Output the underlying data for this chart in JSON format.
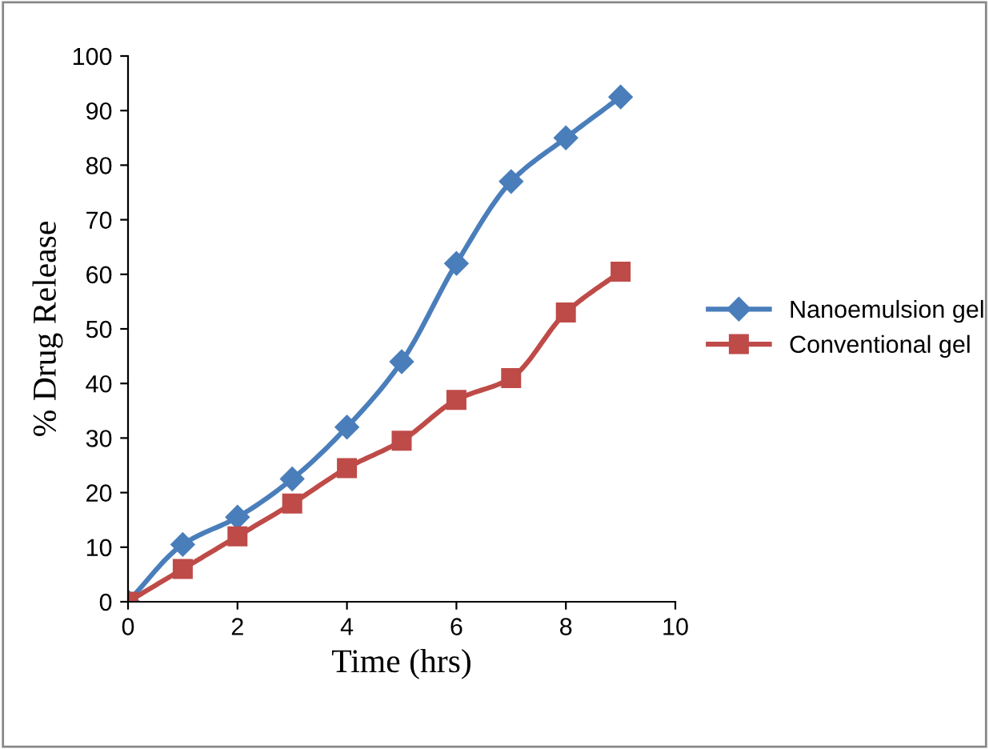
{
  "chart_data": {
    "type": "line",
    "xlabel": "Time (hrs)",
    "ylabel": "% Drug Release",
    "x": [
      0,
      1,
      2,
      3,
      4,
      5,
      6,
      7,
      8,
      9
    ],
    "series": [
      {
        "name": "Nanoemulsion gel",
        "color": "#4a7ebb",
        "marker": "diamond",
        "values": [
          0,
          10.5,
          15.5,
          22.5,
          32,
          44,
          62,
          77,
          85,
          92.5
        ]
      },
      {
        "name": "Conventional gel",
        "color": "#be4b48",
        "marker": "square",
        "values": [
          0,
          6,
          12,
          18,
          24.5,
          29.5,
          37,
          41,
          53,
          60.5
        ]
      }
    ],
    "xlim": [
      0,
      10
    ],
    "xticks": [
      0,
      2,
      4,
      6,
      8,
      10
    ],
    "ylim": [
      0,
      100
    ],
    "yticks": [
      0,
      10,
      20,
      30,
      40,
      50,
      60,
      70,
      80,
      90,
      100
    ],
    "grid": false,
    "legend": "right",
    "line_style": "solid"
  }
}
